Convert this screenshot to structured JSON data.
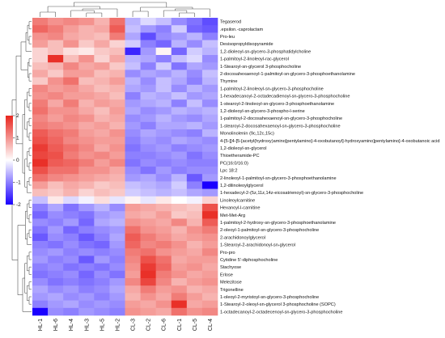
{
  "chart_data": {
    "type": "heatmap",
    "title": "",
    "columns": [
      "HL-1",
      "HL-6",
      "HL-4",
      "HL-3",
      "HL-5",
      "HL-2",
      "CL-3",
      "CL-2",
      "CL-6",
      "CL-1",
      "CL-5",
      "CL-4"
    ],
    "rows": [
      "Tegaserod",
      ".epsilon.-caprolactam",
      "Pro-leu",
      "Desisopropyldisopyramide",
      "1,2-dioleoyl-sn-glycero-3-phosphatidylcholine",
      "1-palmitoyl-2-linoleoyl-rac-glycerol",
      "1-Stearoyl-sn-glycerol 3-phosphocholine",
      "2-docosahexaenoyl-1-palmitoyl-sn-glycero-3-phosphoethanolamine",
      "Thymine",
      "1-palmitoyl-2-linoleoyl-sn-glycero-3-phosphocholine",
      "1-hexadecanoyl-2-octadecadienoyl-sn-glycero-3-phosphocholine",
      "1-stearoyl-2-linoleoyl-sn-glycero-3-phosphoethanolamine",
      "1,2-dioleoyl-sn-glycero-3-phospho-l-serine",
      "1-palmitoyl-2-docosahexaenoyl-sn-glycero-3-phosphocholine",
      "1-stearoyl-2-docosahexaenoyl-sn-glycero-3-phosphocholine",
      "Monolinolenin (9c,12c,15c)",
      "4-[5-[[4-[5-[acetyl(hydroxy)amino]pentylamino]-4-oxobutanoyl]-hydroxyamino]pentylamino]-4-oxobutanoic acid",
      "1,2-dioleoyl-sn-glycerol",
      "Thioetheramide-PC",
      "PC(16:0/16:0)",
      "Lpc 18:2",
      "2-linoleoyl-1-palmitoyl-sn-glycero-3-phosphoethanolamine",
      "1,2-dilinoleoylglycerol",
      "1-hexadecyl-2-(5z,11z,14z-eicosatrienoyl)-sn-glycero-3-phosphocholine",
      "Linoleoylcarnitine",
      "Hexanoyl-l-carnitine",
      "Met-Met-Arg",
      "1-palmitoyl-2-hydroxy-sn-glycero-3-phosphoethanolamine",
      "2-oleoyl-1-palmitoyl-sn-glycero-3-phosphocholine",
      "2-arachidonoylglycerol",
      "1-Stearoyl-2-arachidonoyl-sn-glycerol",
      "Pro-pro",
      "Cytidine 5'-diphosphocholine",
      "Stachyose",
      "Erlose",
      "Melezitose",
      "Trigonelline",
      "1-oleoyl-2-myristoyl-sn-glycero-3-phosphocholine",
      "1-Stearoyl-2-oleoyl-sn-glycerol 3-phosphocholine (SOPC)",
      "1-octadecanoyl-2-octadecenoyl-sn-glycero-3-phosphocholine"
    ],
    "values": [
      [
        1.2,
        1.0,
        1.1,
        1.0,
        0.7,
        1.3,
        -0.6,
        -0.3,
        -0.5,
        -0.9,
        -1.1,
        -1.4
      ],
      [
        1.4,
        1.2,
        0.9,
        0.7,
        0.8,
        1.5,
        -0.5,
        -0.8,
        -1.0,
        -0.4,
        -1.2,
        -1.3
      ],
      [
        1.0,
        1.1,
        0.8,
        0.7,
        0.6,
        1.2,
        -0.7,
        -1.4,
        -0.9,
        -0.8,
        -0.6,
        -1.0
      ],
      [
        0.9,
        0.6,
        1.0,
        0.5,
        0.8,
        0.4,
        -0.4,
        -1.0,
        -1.2,
        -0.6,
        -0.9,
        -0.5
      ],
      [
        0.4,
        0.6,
        0.3,
        0.2,
        0.5,
        0.6,
        -1.7,
        -0.8,
        0.1,
        -1.2,
        -0.4,
        -0.6
      ],
      [
        0.4,
        1.9,
        0.6,
        1.0,
        0.4,
        0.8,
        -0.6,
        -0.7,
        -1.0,
        -0.5,
        -0.3,
        -0.9
      ],
      [
        0.6,
        0.7,
        1.1,
        0.8,
        0.9,
        0.5,
        -0.5,
        -1.0,
        -0.4,
        -1.1,
        -0.7,
        -0.8
      ],
      [
        0.8,
        0.5,
        0.9,
        0.9,
        0.6,
        0.7,
        -0.9,
        -0.7,
        -0.8,
        -0.6,
        -0.9,
        -0.5
      ],
      [
        0.5,
        1.0,
        1.3,
        0.6,
        0.7,
        0.9,
        -0.6,
        -0.9,
        -0.5,
        -0.7,
        -1.0,
        -0.6
      ],
      [
        1.1,
        0.9,
        1.0,
        0.8,
        0.6,
        0.7,
        -0.7,
        -0.8,
        -0.5,
        -0.9,
        -0.6,
        -0.8
      ],
      [
        1.0,
        1.1,
        0.9,
        0.9,
        0.8,
        0.6,
        -1.0,
        -0.6,
        -0.7,
        -0.5,
        -0.8,
        -0.7
      ],
      [
        1.2,
        0.8,
        1.2,
        0.7,
        0.9,
        0.8,
        -0.8,
        -0.7,
        -0.6,
        -1.0,
        -0.5,
        -0.9
      ],
      [
        1.3,
        1.0,
        1.0,
        0.8,
        0.6,
        0.9,
        -0.7,
        -0.9,
        -0.8,
        -0.6,
        -0.7,
        -0.6
      ],
      [
        1.1,
        0.9,
        1.1,
        1.0,
        0.7,
        0.8,
        -0.9,
        -0.8,
        -0.6,
        -0.8,
        -0.9,
        -0.7
      ],
      [
        1.2,
        1.1,
        1.0,
        0.8,
        0.9,
        0.7,
        -0.8,
        -1.0,
        -0.7,
        -0.7,
        -0.6,
        -0.8
      ],
      [
        1.5,
        1.3,
        1.2,
        0.9,
        0.8,
        1.0,
        -0.9,
        -0.7,
        -0.8,
        -0.9,
        -1.0,
        -0.6
      ],
      [
        1.6,
        1.4,
        1.1,
        1.0,
        0.9,
        0.9,
        -1.0,
        -0.8,
        -0.9,
        -0.7,
        -0.8,
        -0.9
      ],
      [
        1.8,
        1.5,
        1.3,
        1.1,
        0.8,
        1.0,
        -1.1,
        -0.9,
        -0.8,
        -1.0,
        -0.9,
        -0.8
      ],
      [
        1.7,
        1.6,
        1.2,
        1.0,
        1.1,
        0.9,
        -1.0,
        -1.0,
        -0.9,
        -0.8,
        -1.1,
        -0.9
      ],
      [
        1.9,
        1.5,
        1.4,
        1.2,
        0.9,
        1.1,
        -1.1,
        -0.9,
        -1.0,
        -0.9,
        -1.0,
        -1.0
      ],
      [
        1.6,
        1.3,
        1.3,
        1.0,
        1.0,
        0.8,
        -0.9,
        -1.1,
        -0.8,
        -1.0,
        -0.9,
        -0.9
      ],
      [
        1.3,
        1.1,
        1.0,
        0.9,
        0.8,
        0.7,
        -0.8,
        -0.7,
        -0.9,
        -0.6,
        -1.3,
        -0.8
      ],
      [
        0.9,
        0.6,
        0.8,
        0.7,
        0.5,
        0.6,
        -0.5,
        -0.6,
        -0.7,
        -0.4,
        -1.0,
        -2.0
      ],
      [
        0.6,
        0.5,
        0.7,
        0.4,
        0.6,
        0.5,
        -0.4,
        -0.5,
        -0.6,
        -0.5,
        -0.7,
        -0.8
      ],
      [
        -0.5,
        0.2,
        -0.3,
        -0.1,
        0.3,
        -0.2,
        0.1,
        -0.2,
        0.2,
        0.0,
        -0.1,
        0.4
      ],
      [
        -1.0,
        -0.7,
        -1.1,
        -0.8,
        -0.6,
        -0.9,
        0.9,
        0.8,
        0.7,
        0.6,
        0.5,
        1.6
      ],
      [
        -1.2,
        -0.9,
        -1.0,
        -1.1,
        -0.8,
        -0.7,
        0.8,
        0.7,
        0.9,
        0.5,
        0.6,
        1.9
      ],
      [
        -0.9,
        -1.0,
        -0.8,
        -1.2,
        -0.7,
        -0.6,
        1.0,
        0.9,
        0.8,
        1.1,
        0.7,
        1.5
      ],
      [
        -1.1,
        -0.8,
        -1.2,
        -1.0,
        -0.9,
        -0.8,
        1.3,
        1.0,
        0.9,
        0.7,
        1.0,
        1.2
      ],
      [
        -1.3,
        -0.9,
        -1.0,
        -1.3,
        -1.0,
        -0.7,
        1.5,
        1.2,
        1.0,
        0.8,
        0.9,
        1.0
      ],
      [
        -1.0,
        -1.1,
        -0.9,
        -1.1,
        -1.2,
        -0.8,
        1.4,
        1.1,
        1.2,
        1.0,
        0.7,
        0.9
      ],
      [
        -0.9,
        -0.8,
        -1.0,
        -0.9,
        -1.0,
        -0.9,
        1.2,
        1.3,
        1.0,
        0.9,
        0.8,
        1.1
      ],
      [
        -0.8,
        -1.0,
        -0.9,
        -1.3,
        -0.8,
        -1.0,
        1.1,
        1.6,
        1.3,
        0.8,
        0.9,
        0.9
      ],
      [
        -1.0,
        -0.9,
        -1.1,
        -1.0,
        -1.1,
        -0.9,
        1.0,
        1.8,
        1.4,
        0.9,
        1.0,
        0.8
      ],
      [
        -1.1,
        -1.0,
        -0.9,
        -1.2,
        -0.9,
        -1.1,
        0.9,
        1.9,
        1.2,
        1.0,
        0.8,
        0.9
      ],
      [
        -0.9,
        -1.1,
        -1.0,
        -1.1,
        -1.0,
        -0.8,
        1.1,
        1.7,
        1.1,
        0.7,
        0.9,
        1.0
      ],
      [
        -0.7,
        -0.9,
        -0.8,
        -1.0,
        -0.9,
        -0.7,
        0.8,
        1.2,
        0.9,
        1.0,
        0.7,
        0.8
      ],
      [
        -0.8,
        -0.7,
        -0.9,
        -0.8,
        -1.0,
        -0.8,
        0.7,
        1.0,
        0.8,
        1.2,
        0.9,
        0.7
      ],
      [
        -1.0,
        -0.8,
        -0.7,
        -0.9,
        -0.8,
        -0.9,
        0.9,
        0.8,
        1.0,
        1.9,
        0.8,
        0.9
      ],
      [
        -2.0,
        -0.9,
        -1.0,
        -0.8,
        -0.9,
        -1.0,
        1.0,
        0.9,
        0.8,
        1.3,
        1.0,
        1.1
      ]
    ],
    "color_scale": {
      "min": -2,
      "max": 2,
      "ticks": [
        2,
        1,
        0,
        -1,
        -2
      ],
      "low_color": "#1a00ff",
      "mid_color": "#ffffff",
      "high_color": "#e8251d"
    },
    "dendrogram_columns": true,
    "dendrogram_rows": true,
    "legend": "left"
  }
}
